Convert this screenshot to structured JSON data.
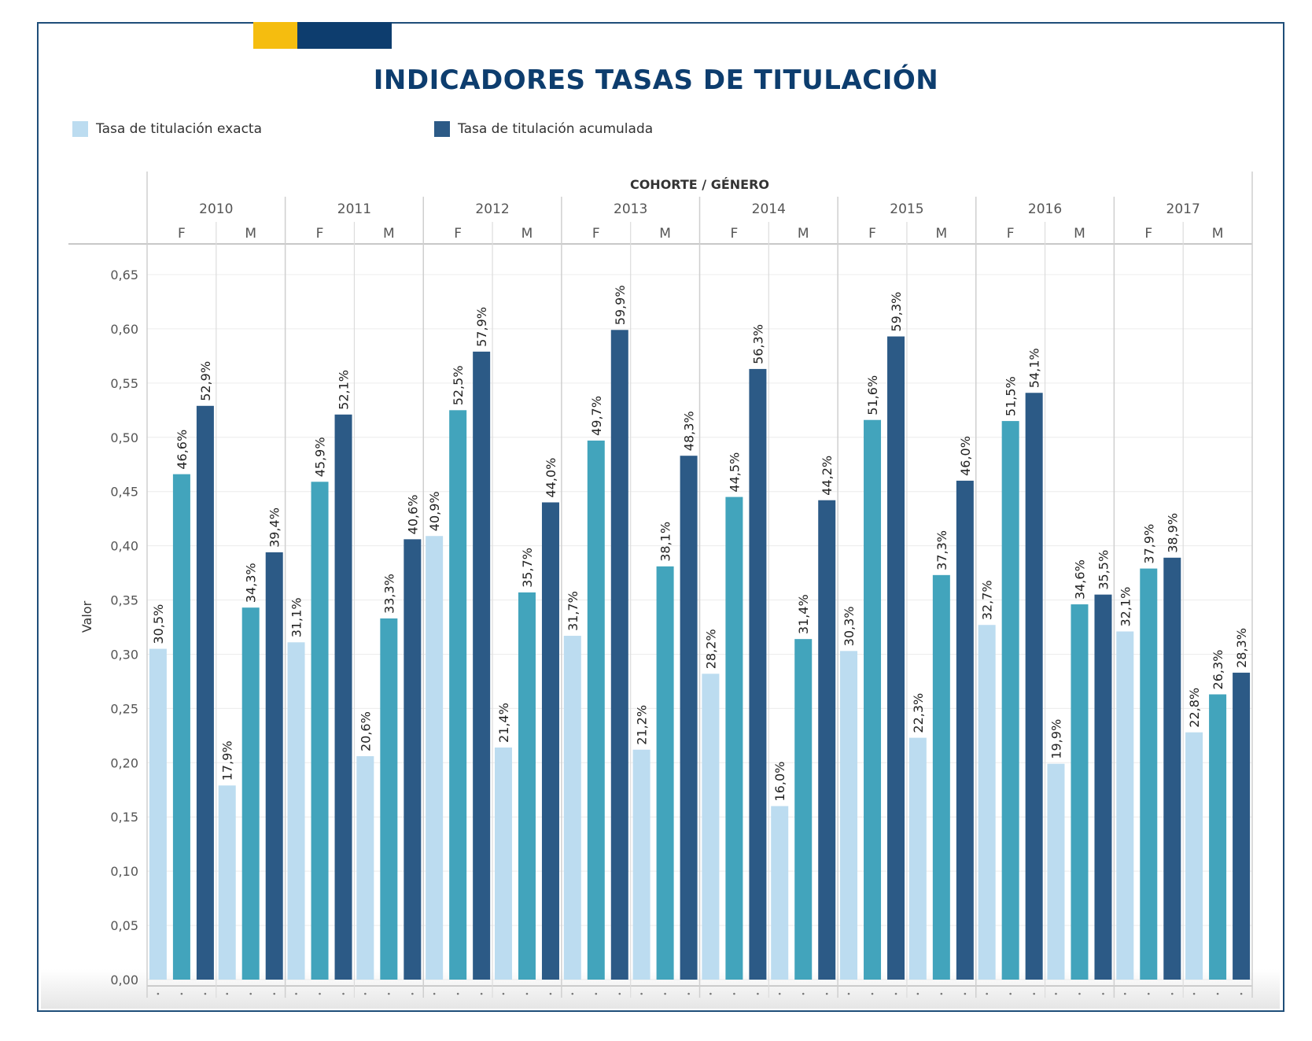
{
  "colors": {
    "brand_yellow": "#f5bd0f",
    "brand_navy": "#0d3d6e",
    "title": "#0d3d6e",
    "exacta": "#bcdcf0",
    "middle": "#42a4bc",
    "acumulada": "#2c5a86"
  },
  "title": "INDICADORES TASAS DE TITULACIÓN",
  "legend": {
    "exacta": "Tasa de titulación exacta",
    "acumulada": "Tasa de titulación acumulada"
  },
  "chart_data": {
    "type": "bar",
    "title": "INDICADORES TASAS DE TITULACIÓN",
    "column_header": "COHORTE / GÉNERO",
    "ylabel": "Valor",
    "ylim": [
      0,
      0.65
    ],
    "yticks": [
      "0,00",
      "0,05",
      "0,10",
      "0,15",
      "0,20",
      "0,25",
      "0,30",
      "0,35",
      "0,40",
      "0,45",
      "0,50",
      "0,55",
      "0,60",
      "0,65"
    ],
    "grid": true,
    "legend_position": "top-left",
    "cohorts": [
      "2010",
      "2011",
      "2012",
      "2013",
      "2014",
      "2015",
      "2016",
      "2017"
    ],
    "genders": [
      "F",
      "M"
    ],
    "groups": [
      {
        "cohort": "2010",
        "gender": "F",
        "values": [
          0.305,
          0.466,
          0.529
        ],
        "labels": [
          "30,5%",
          "46,6%",
          "52,9%"
        ]
      },
      {
        "cohort": "2010",
        "gender": "M",
        "values": [
          0.179,
          0.343,
          0.394
        ],
        "labels": [
          "17,9%",
          "34,3%",
          "39,4%"
        ]
      },
      {
        "cohort": "2011",
        "gender": "F",
        "values": [
          0.311,
          0.459,
          0.521
        ],
        "labels": [
          "31,1%",
          "45,9%",
          "52,1%"
        ]
      },
      {
        "cohort": "2011",
        "gender": "M",
        "values": [
          0.206,
          0.333,
          0.406
        ],
        "labels": [
          "20,6%",
          "33,3%",
          "40,6%"
        ]
      },
      {
        "cohort": "2012",
        "gender": "F",
        "values": [
          0.409,
          0.525,
          0.579
        ],
        "labels": [
          "40,9%",
          "52,5%",
          "57,9%"
        ]
      },
      {
        "cohort": "2012",
        "gender": "M",
        "values": [
          0.214,
          0.357,
          0.44
        ],
        "labels": [
          "21,4%",
          "35,7%",
          "44,0%"
        ]
      },
      {
        "cohort": "2013",
        "gender": "F",
        "values": [
          0.317,
          0.497,
          0.599
        ],
        "labels": [
          "31,7%",
          "49,7%",
          "59,9%"
        ]
      },
      {
        "cohort": "2013",
        "gender": "M",
        "values": [
          0.212,
          0.381,
          0.483
        ],
        "labels": [
          "21,2%",
          "38,1%",
          "48,3%"
        ]
      },
      {
        "cohort": "2014",
        "gender": "F",
        "values": [
          0.282,
          0.445,
          0.563
        ],
        "labels": [
          "28,2%",
          "44,5%",
          "56,3%"
        ]
      },
      {
        "cohort": "2014",
        "gender": "M",
        "values": [
          0.16,
          0.314,
          0.442
        ],
        "labels": [
          "16,0%",
          "31,4%",
          "44,2%"
        ]
      },
      {
        "cohort": "2015",
        "gender": "F",
        "values": [
          0.303,
          0.516,
          0.593
        ],
        "labels": [
          "30,3%",
          "51,6%",
          "59,3%"
        ]
      },
      {
        "cohort": "2015",
        "gender": "M",
        "values": [
          0.223,
          0.373,
          0.46
        ],
        "labels": [
          "22,3%",
          "37,3%",
          "46,0%"
        ]
      },
      {
        "cohort": "2016",
        "gender": "F",
        "values": [
          0.327,
          0.515,
          0.541
        ],
        "labels": [
          "32,7%",
          "51,5%",
          "54,1%"
        ]
      },
      {
        "cohort": "2016",
        "gender": "M",
        "values": [
          0.199,
          0.346,
          0.355
        ],
        "labels": [
          "19,9%",
          "34,6%",
          "35,5%"
        ]
      },
      {
        "cohort": "2017",
        "gender": "F",
        "values": [
          0.321,
          0.379,
          0.389
        ],
        "labels": [
          "32,1%",
          "37,9%",
          "38,9%"
        ]
      },
      {
        "cohort": "2017",
        "gender": "M",
        "values": [
          0.228,
          0.263,
          0.283
        ],
        "labels": [
          "22,8%",
          "26,3%",
          "28,3%"
        ]
      }
    ]
  }
}
